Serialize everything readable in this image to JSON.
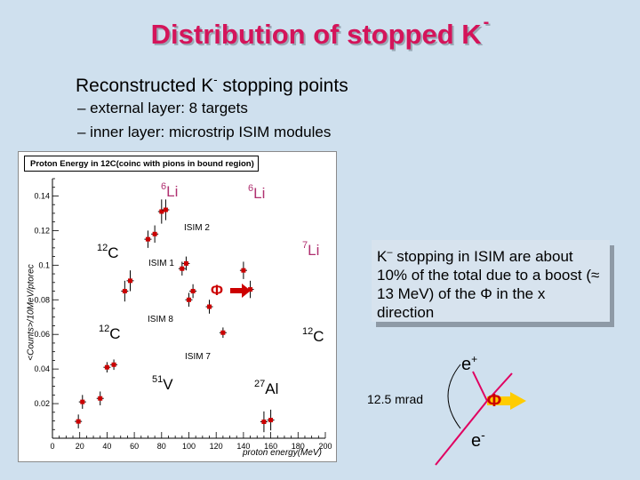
{
  "title": {
    "text": "Distribution of stopped K",
    "superscript": "-"
  },
  "subtitle": {
    "before": "Reconstructed K",
    "superscript": "-",
    "after": " stopping points"
  },
  "bullets": [
    "– external layer: 8 targets",
    "– inner layer: microstrip ISIM modules"
  ],
  "plot": {
    "panel_title": "Proton Energy in 12C(coinc with pions in bound region)",
    "ylabel": "<Counts>/10MeV/ptorec",
    "xlabel": "proton energy(MeV)"
  },
  "annotations": [
    {
      "iso": "6",
      "el": "Li"
    },
    {
      "iso": "6",
      "el": "Li"
    },
    {
      "iso": "12",
      "el": "C"
    },
    {
      "iso": "7",
      "el": "Li"
    },
    {
      "iso": "12",
      "el": "C"
    },
    {
      "iso": "12",
      "el": "C"
    },
    {
      "iso": "51",
      "el": "V"
    },
    {
      "iso": "27",
      "el": "Al"
    }
  ],
  "isim_labels": [
    "ISIM 2",
    "ISIM 1",
    "ISIM 8",
    "ISIM 7"
  ],
  "phi_symbol": "Φ",
  "chart_data": {
    "type": "scatter",
    "title": "Proton Energy in 12C(coinc with pions in bound region)",
    "xlabel": "proton energy(MeV)",
    "ylabel": "<Counts>/10MeV/ptorec",
    "xlim": [
      0,
      200
    ],
    "ylim": [
      0,
      0.15
    ],
    "xticks": [
      0,
      20,
      40,
      60,
      80,
      100,
      120,
      140,
      160,
      180,
      200
    ],
    "yticks": [
      0.02,
      0.04,
      0.06,
      0.08,
      0.1,
      0.12,
      0.14
    ],
    "x": [
      19,
      22,
      35,
      40,
      45,
      53,
      57,
      70,
      75,
      80,
      83,
      95,
      98,
      100,
      103,
      115,
      125,
      140,
      145,
      155,
      160
    ],
    "y": [
      0.0097,
      0.021,
      0.023,
      0.041,
      0.0425,
      0.085,
      0.091,
      0.115,
      0.118,
      0.131,
      0.132,
      0.098,
      0.101,
      0.08,
      0.085,
      0.076,
      0.061,
      0.097,
      0.086,
      0.0095,
      0.0105
    ],
    "yerr": [
      0.004,
      0.004,
      0.004,
      0.003,
      0.003,
      0.006,
      0.006,
      0.005,
      0.005,
      0.007,
      0.006,
      0.004,
      0.004,
      0.004,
      0.004,
      0.004,
      0.003,
      0.005,
      0.005,
      0.006,
      0.006
    ],
    "marker_color": "#cc0000",
    "grid": false
  },
  "callout": {
    "prefix": "K",
    "superscript": "–",
    "text": " stopping in ISIM are about 10% of the total due to a boost (≈ 13 MeV) of the Φ in the x direction"
  },
  "diagram": {
    "eplus": {
      "base": "e",
      "superscript": "+"
    },
    "eminus": {
      "base": "e",
      "superscript": "-"
    },
    "angle_label": "12.5 mrad",
    "phi": "Φ"
  },
  "colors": {
    "background": "#cfe0ee",
    "title": "#d4145a",
    "marker": "#cc0000",
    "track": "#e00060"
  }
}
